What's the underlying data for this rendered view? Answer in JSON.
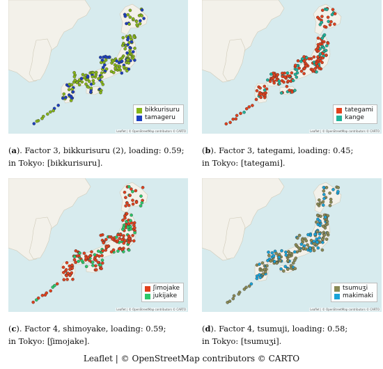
{
  "panels": [
    {
      "letter": "a",
      "caption_rest": "). Factor 3, bikkurisuru (2), loading: 0.59;",
      "caption_line2": "in Tokyo: [bikkurisuru].",
      "legend": [
        {
          "label": "bikkurisuru",
          "color": "#86b518"
        },
        {
          "label": "tamageru",
          "color": "#1c3fbf"
        }
      ],
      "attribution": "Leaflet | © OpenStreetMap contributors © CARTO"
    },
    {
      "letter": "b",
      "caption_rest": "). Factor 3, tategami, loading: 0.45;",
      "caption_line2": "in Tokyo: [tategami].",
      "legend": [
        {
          "label": "tategami",
          "color": "#e2401c"
        },
        {
          "label": "kange",
          "color": "#1fb39a"
        }
      ],
      "attribution": "Leaflet | © OpenStreetMap contributors © CARTO"
    },
    {
      "letter": "c",
      "caption_rest": "). Factor 4, shimoyake, loading: 0.59;",
      "caption_line2": "in Tokyo: [ʃimojake].",
      "legend": [
        {
          "label": "ʃimojake",
          "color": "#e2401c"
        },
        {
          "label": "jukijake",
          "color": "#2cc86a"
        }
      ],
      "attribution": "Leaflet | © OpenStreetMap contributors © CARTO"
    },
    {
      "letter": "d",
      "caption_rest": "). Factor 4, tsumuji, loading: 0.58;",
      "caption_line2": "in Tokyo: [tsumuʒi].",
      "legend": [
        {
          "label": "tsumuʒi",
          "color": "#8a8a55"
        },
        {
          "label": "makimaki",
          "color": "#1aa3d8"
        }
      ],
      "attribution": "Leaflet | © OpenStreetMap contributors © CARTO"
    }
  ],
  "footer": "Leaflet | © OpenStreetMap contributors © CARTO"
}
